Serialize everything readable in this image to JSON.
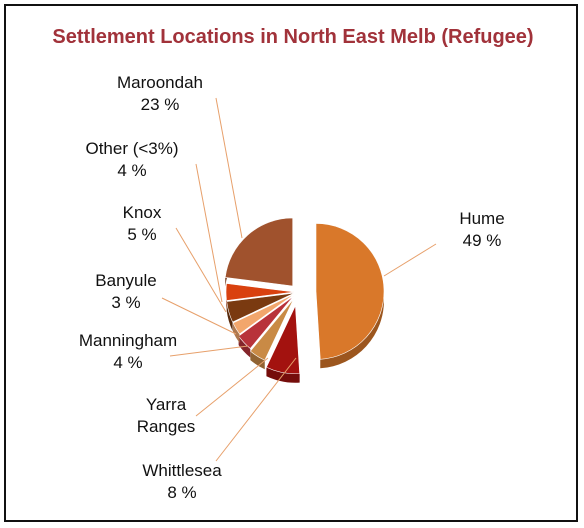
{
  "chart_data": {
    "type": "pie",
    "title": "Settlement Locations in North East Melb (Refugee)",
    "exploded": true,
    "slices": [
      {
        "name": "Hume",
        "pct_label": "49 %",
        "value": 49,
        "color": "#d9782a"
      },
      {
        "name": "Whittlesea",
        "pct_label": "8 %",
        "value": 8,
        "color": "#a3120f"
      },
      {
        "name": "Yarra Ranges",
        "pct_label": "",
        "value": 4,
        "color": "#c98a45"
      },
      {
        "name": "Manningham",
        "pct_label": "4 %",
        "value": 4,
        "color": "#b8333a"
      },
      {
        "name": "Banyule",
        "pct_label": "3 %",
        "value": 3,
        "color": "#f2a66c"
      },
      {
        "name": "Knox",
        "pct_label": "5 %",
        "value": 5,
        "color": "#7a3a10"
      },
      {
        "name": "Other (<3%)",
        "pct_label": "4 %",
        "value": 4,
        "color": "#d9410f"
      },
      {
        "name": "Maroondah",
        "pct_label": "23 %",
        "value": 23,
        "color": "#a0522d"
      }
    ],
    "label_lines": {
      "Yarra Ranges": [
        "Yarra",
        "Ranges"
      ]
    },
    "leader_color": "#e7a06b"
  }
}
